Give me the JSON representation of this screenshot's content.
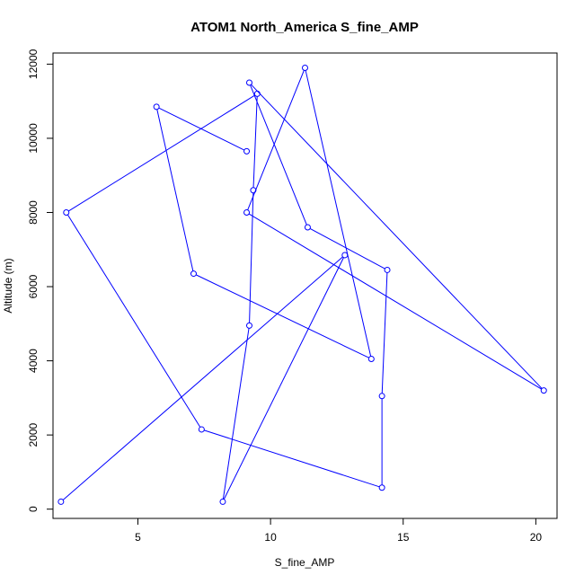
{
  "chart_data": {
    "type": "line",
    "title": "ATOM1 North_America S_fine_AMP",
    "xlabel": "S_fine_AMP",
    "ylabel": "Altitude (m)",
    "xlim": [
      1.8,
      20.8
    ],
    "ylim": [
      -250,
      12300
    ],
    "xticks": [
      5,
      10,
      15,
      20
    ],
    "yticks": [
      0,
      2000,
      4000,
      6000,
      8000,
      10000,
      12000
    ],
    "grid": false,
    "legend": "none",
    "series": [
      {
        "color": "#0000ff",
        "marker": "open-circle",
        "points": [
          {
            "x": 2.1,
            "y": 200
          },
          {
            "x": 12.8,
            "y": 6850
          },
          {
            "x": 8.2,
            "y": 200
          },
          {
            "x": 9.2,
            "y": 4950
          },
          {
            "x": 9.35,
            "y": 8600
          },
          {
            "x": 9.5,
            "y": 11200
          },
          {
            "x": 2.3,
            "y": 8000
          },
          {
            "x": 7.4,
            "y": 2150
          },
          {
            "x": 14.2,
            "y": 580
          },
          {
            "x": 14.2,
            "y": 3050
          },
          {
            "x": 14.4,
            "y": 6450
          },
          {
            "x": 11.4,
            "y": 7600
          },
          {
            "x": 9.2,
            "y": 11500
          },
          {
            "x": 20.3,
            "y": 3200
          },
          {
            "x": 9.1,
            "y": 8000
          },
          {
            "x": 11.3,
            "y": 11900
          },
          {
            "x": 13.8,
            "y": 4050
          },
          {
            "x": 7.1,
            "y": 6350
          },
          {
            "x": 5.7,
            "y": 10850
          },
          {
            "x": 9.1,
            "y": 9650
          }
        ]
      }
    ]
  }
}
